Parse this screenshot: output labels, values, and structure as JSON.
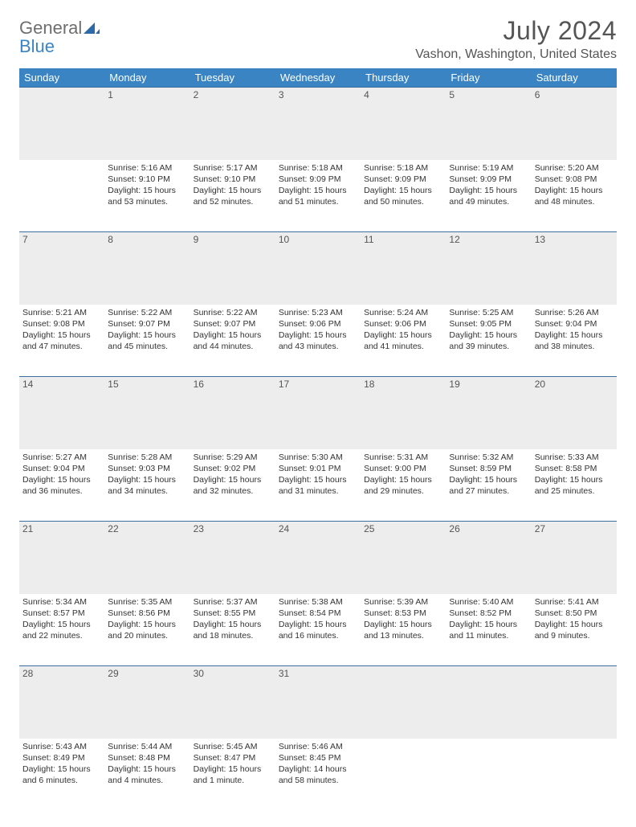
{
  "logo": {
    "general": "General",
    "blue": "Blue"
  },
  "title": "July 2024",
  "location": "Vashon, Washington, United States",
  "style": {
    "header_bg": "#3a84c4",
    "header_text": "#ffffff",
    "daynum_bg": "#ededed",
    "daynum_border": "#3a6fa0",
    "page_bg": "#ffffff",
    "text_color": "#333333",
    "title_color": "#555555",
    "title_fontsize": 32,
    "location_fontsize": 16,
    "dayheader_fontsize": 13,
    "daynum_fontsize": 12,
    "cell_fontsize": 10.5
  },
  "day_headers": [
    "Sunday",
    "Monday",
    "Tuesday",
    "Wednesday",
    "Thursday",
    "Friday",
    "Saturday"
  ],
  "weeks": [
    {
      "nums": [
        "",
        "1",
        "2",
        "3",
        "4",
        "5",
        "6"
      ],
      "cells": [
        null,
        {
          "sunrise": "Sunrise: 5:16 AM",
          "sunset": "Sunset: 9:10 PM",
          "day1": "Daylight: 15 hours",
          "day2": "and 53 minutes."
        },
        {
          "sunrise": "Sunrise: 5:17 AM",
          "sunset": "Sunset: 9:10 PM",
          "day1": "Daylight: 15 hours",
          "day2": "and 52 minutes."
        },
        {
          "sunrise": "Sunrise: 5:18 AM",
          "sunset": "Sunset: 9:09 PM",
          "day1": "Daylight: 15 hours",
          "day2": "and 51 minutes."
        },
        {
          "sunrise": "Sunrise: 5:18 AM",
          "sunset": "Sunset: 9:09 PM",
          "day1": "Daylight: 15 hours",
          "day2": "and 50 minutes."
        },
        {
          "sunrise": "Sunrise: 5:19 AM",
          "sunset": "Sunset: 9:09 PM",
          "day1": "Daylight: 15 hours",
          "day2": "and 49 minutes."
        },
        {
          "sunrise": "Sunrise: 5:20 AM",
          "sunset": "Sunset: 9:08 PM",
          "day1": "Daylight: 15 hours",
          "day2": "and 48 minutes."
        }
      ]
    },
    {
      "nums": [
        "7",
        "8",
        "9",
        "10",
        "11",
        "12",
        "13"
      ],
      "cells": [
        {
          "sunrise": "Sunrise: 5:21 AM",
          "sunset": "Sunset: 9:08 PM",
          "day1": "Daylight: 15 hours",
          "day2": "and 47 minutes."
        },
        {
          "sunrise": "Sunrise: 5:22 AM",
          "sunset": "Sunset: 9:07 PM",
          "day1": "Daylight: 15 hours",
          "day2": "and 45 minutes."
        },
        {
          "sunrise": "Sunrise: 5:22 AM",
          "sunset": "Sunset: 9:07 PM",
          "day1": "Daylight: 15 hours",
          "day2": "and 44 minutes."
        },
        {
          "sunrise": "Sunrise: 5:23 AM",
          "sunset": "Sunset: 9:06 PM",
          "day1": "Daylight: 15 hours",
          "day2": "and 43 minutes."
        },
        {
          "sunrise": "Sunrise: 5:24 AM",
          "sunset": "Sunset: 9:06 PM",
          "day1": "Daylight: 15 hours",
          "day2": "and 41 minutes."
        },
        {
          "sunrise": "Sunrise: 5:25 AM",
          "sunset": "Sunset: 9:05 PM",
          "day1": "Daylight: 15 hours",
          "day2": "and 39 minutes."
        },
        {
          "sunrise": "Sunrise: 5:26 AM",
          "sunset": "Sunset: 9:04 PM",
          "day1": "Daylight: 15 hours",
          "day2": "and 38 minutes."
        }
      ]
    },
    {
      "nums": [
        "14",
        "15",
        "16",
        "17",
        "18",
        "19",
        "20"
      ],
      "cells": [
        {
          "sunrise": "Sunrise: 5:27 AM",
          "sunset": "Sunset: 9:04 PM",
          "day1": "Daylight: 15 hours",
          "day2": "and 36 minutes."
        },
        {
          "sunrise": "Sunrise: 5:28 AM",
          "sunset": "Sunset: 9:03 PM",
          "day1": "Daylight: 15 hours",
          "day2": "and 34 minutes."
        },
        {
          "sunrise": "Sunrise: 5:29 AM",
          "sunset": "Sunset: 9:02 PM",
          "day1": "Daylight: 15 hours",
          "day2": "and 32 minutes."
        },
        {
          "sunrise": "Sunrise: 5:30 AM",
          "sunset": "Sunset: 9:01 PM",
          "day1": "Daylight: 15 hours",
          "day2": "and 31 minutes."
        },
        {
          "sunrise": "Sunrise: 5:31 AM",
          "sunset": "Sunset: 9:00 PM",
          "day1": "Daylight: 15 hours",
          "day2": "and 29 minutes."
        },
        {
          "sunrise": "Sunrise: 5:32 AM",
          "sunset": "Sunset: 8:59 PM",
          "day1": "Daylight: 15 hours",
          "day2": "and 27 minutes."
        },
        {
          "sunrise": "Sunrise: 5:33 AM",
          "sunset": "Sunset: 8:58 PM",
          "day1": "Daylight: 15 hours",
          "day2": "and 25 minutes."
        }
      ]
    },
    {
      "nums": [
        "21",
        "22",
        "23",
        "24",
        "25",
        "26",
        "27"
      ],
      "cells": [
        {
          "sunrise": "Sunrise: 5:34 AM",
          "sunset": "Sunset: 8:57 PM",
          "day1": "Daylight: 15 hours",
          "day2": "and 22 minutes."
        },
        {
          "sunrise": "Sunrise: 5:35 AM",
          "sunset": "Sunset: 8:56 PM",
          "day1": "Daylight: 15 hours",
          "day2": "and 20 minutes."
        },
        {
          "sunrise": "Sunrise: 5:37 AM",
          "sunset": "Sunset: 8:55 PM",
          "day1": "Daylight: 15 hours",
          "day2": "and 18 minutes."
        },
        {
          "sunrise": "Sunrise: 5:38 AM",
          "sunset": "Sunset: 8:54 PM",
          "day1": "Daylight: 15 hours",
          "day2": "and 16 minutes."
        },
        {
          "sunrise": "Sunrise: 5:39 AM",
          "sunset": "Sunset: 8:53 PM",
          "day1": "Daylight: 15 hours",
          "day2": "and 13 minutes."
        },
        {
          "sunrise": "Sunrise: 5:40 AM",
          "sunset": "Sunset: 8:52 PM",
          "day1": "Daylight: 15 hours",
          "day2": "and 11 minutes."
        },
        {
          "sunrise": "Sunrise: 5:41 AM",
          "sunset": "Sunset: 8:50 PM",
          "day1": "Daylight: 15 hours",
          "day2": "and 9 minutes."
        }
      ]
    },
    {
      "nums": [
        "28",
        "29",
        "30",
        "31",
        "",
        "",
        ""
      ],
      "cells": [
        {
          "sunrise": "Sunrise: 5:43 AM",
          "sunset": "Sunset: 8:49 PM",
          "day1": "Daylight: 15 hours",
          "day2": "and 6 minutes."
        },
        {
          "sunrise": "Sunrise: 5:44 AM",
          "sunset": "Sunset: 8:48 PM",
          "day1": "Daylight: 15 hours",
          "day2": "and 4 minutes."
        },
        {
          "sunrise": "Sunrise: 5:45 AM",
          "sunset": "Sunset: 8:47 PM",
          "day1": "Daylight: 15 hours",
          "day2": "and 1 minute."
        },
        {
          "sunrise": "Sunrise: 5:46 AM",
          "sunset": "Sunset: 8:45 PM",
          "day1": "Daylight: 14 hours",
          "day2": "and 58 minutes."
        },
        null,
        null,
        null
      ]
    }
  ]
}
